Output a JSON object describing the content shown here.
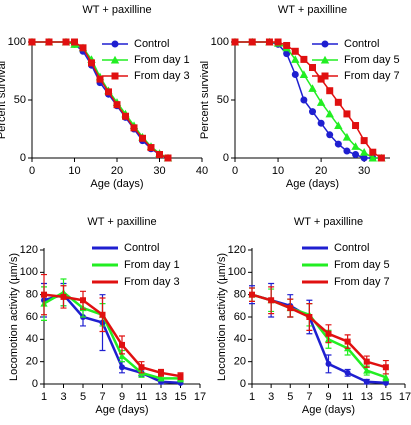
{
  "chart_data": [
    {
      "type": "line",
      "title": "WT + paxilline",
      "x_label": "Age (days)",
      "y_label": "Percent survival",
      "x": [
        0,
        4,
        8,
        10,
        12,
        14,
        16,
        18,
        20,
        22,
        24,
        26,
        28,
        30,
        32
      ],
      "series": [
        {
          "name": "Control",
          "color": "#1f1fd0",
          "marker": "circle",
          "values": [
            100,
            100,
            100,
            98,
            92,
            80,
            65,
            55,
            45,
            35,
            25,
            15,
            8,
            3,
            0
          ]
        },
        {
          "name": "From day 1",
          "color": "#22ee22",
          "marker": "triangle",
          "values": [
            100,
            100,
            100,
            98,
            95,
            85,
            70,
            58,
            48,
            38,
            28,
            18,
            10,
            4,
            0
          ]
        },
        {
          "name": "From day 3",
          "color": "#e01010",
          "marker": "square",
          "values": [
            100,
            100,
            100,
            100,
            95,
            82,
            68,
            57,
            46,
            36,
            26,
            17,
            9,
            3,
            0
          ]
        }
      ],
      "xlim": [
        0,
        40
      ],
      "ylim": [
        0,
        100
      ],
      "xticks": [
        0,
        10,
        20,
        30,
        40
      ],
      "yticks": [
        0,
        50,
        100
      ],
      "legend": "upper right"
    },
    {
      "type": "line",
      "title": "WT + paxilline",
      "x_label": "Age (days)",
      "y_label": "Percent survival",
      "x": [
        0,
        4,
        8,
        10,
        12,
        14,
        16,
        18,
        20,
        22,
        24,
        26,
        28,
        30,
        32,
        34
      ],
      "series": [
        {
          "name": "Control",
          "color": "#1f1fd0",
          "marker": "circle",
          "values": [
            100,
            100,
            100,
            98,
            90,
            72,
            50,
            40,
            30,
            20,
            12,
            6,
            3,
            0,
            0,
            0
          ]
        },
        {
          "name": "From day 5",
          "color": "#22ee22",
          "marker": "triangle",
          "values": [
            100,
            100,
            100,
            99,
            95,
            85,
            72,
            60,
            48,
            38,
            28,
            18,
            10,
            5,
            0,
            0
          ]
        },
        {
          "name": "From day 7",
          "color": "#e01010",
          "marker": "square",
          "values": [
            100,
            100,
            100,
            100,
            97,
            92,
            85,
            78,
            68,
            58,
            48,
            38,
            28,
            15,
            5,
            0
          ]
        }
      ],
      "xlim": [
        0,
        36
      ],
      "ylim": [
        0,
        100
      ],
      "xticks": [
        0,
        10,
        20,
        30
      ],
      "yticks": [
        0,
        50,
        100
      ],
      "legend": "upper right"
    },
    {
      "type": "line",
      "title": "WT + paxilline",
      "x_label": "Age (days)",
      "y_label": "Locomotion activity (µm/s)",
      "x": [
        1,
        3,
        5,
        7,
        9,
        11,
        13,
        15
      ],
      "series": [
        {
          "name": "Control",
          "color": "#1f1fd0",
          "marker": "circle",
          "values": [
            75,
            80,
            60,
            55,
            15,
            10,
            2,
            1
          ],
          "errors": [
            15,
            10,
            8,
            25,
            5,
            3,
            2,
            1
          ]
        },
        {
          "name": "From day 1",
          "color": "#22ee22",
          "marker": "triangle",
          "values": [
            72,
            82,
            68,
            62,
            25,
            10,
            5,
            5
          ],
          "errors": [
            15,
            12,
            8,
            10,
            5,
            4,
            2,
            3
          ]
        },
        {
          "name": "From day 3",
          "color": "#e01010",
          "marker": "square",
          "values": [
            80,
            78,
            75,
            62,
            35,
            15,
            10,
            7
          ],
          "errors": [
            18,
            10,
            8,
            15,
            8,
            5,
            3,
            3
          ]
        }
      ],
      "xlim": [
        1,
        17
      ],
      "ylim": [
        0,
        120
      ],
      "xticks": [
        1,
        3,
        5,
        7,
        9,
        11,
        13,
        15,
        17
      ],
      "yticks": [
        0,
        20,
        40,
        60,
        80,
        100,
        120
      ],
      "legend": "upper right"
    },
    {
      "type": "line",
      "title": "WT + paxilline",
      "x_label": "Age (days)",
      "y_label": "Locomotion activity (µm/s)",
      "x": [
        1,
        3,
        5,
        7,
        9,
        11,
        13,
        15
      ],
      "series": [
        {
          "name": "Control",
          "color": "#1f1fd0",
          "marker": "circle",
          "values": [
            80,
            75,
            70,
            60,
            18,
            10,
            2,
            1
          ],
          "errors": [
            8,
            15,
            10,
            15,
            8,
            3,
            2,
            1
          ]
        },
        {
          "name": "From day 5",
          "color": "#22ee22",
          "marker": "triangle",
          "values": [
            80,
            75,
            68,
            62,
            40,
            32,
            12,
            6
          ],
          "errors": [
            6,
            10,
            8,
            10,
            8,
            6,
            4,
            3
          ]
        },
        {
          "name": "From day 7",
          "color": "#e01010",
          "marker": "square",
          "values": [
            80,
            75,
            68,
            60,
            45,
            38,
            20,
            15
          ],
          "errors": [
            6,
            12,
            8,
            12,
            8,
            6,
            5,
            6
          ]
        }
      ],
      "xlim": [
        1,
        17
      ],
      "ylim": [
        0,
        120
      ],
      "xticks": [
        1,
        3,
        5,
        7,
        9,
        11,
        13,
        15,
        17
      ],
      "yticks": [
        0,
        20,
        40,
        60,
        80,
        100,
        120
      ],
      "legend": "upper right"
    }
  ]
}
